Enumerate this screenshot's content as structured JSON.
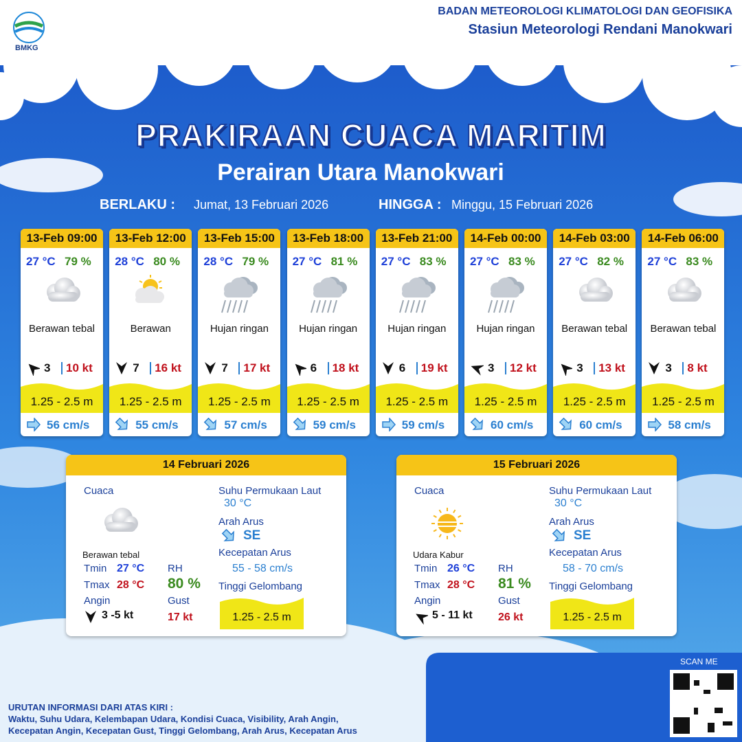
{
  "header": {
    "logo": "BMKG",
    "org": "BADAN METEOROLOGI KLIMATOLOGI DAN GEOFISIKA",
    "station": "Stasiun Meteorologi Rendani Manokwari"
  },
  "title": "PRAKIRAAN CUACA MARITIM",
  "subtitle": "Perairan Utara Manokwari",
  "validity": {
    "from_label": "BERLAKU :",
    "from": "Jumat, 13 Februari 2026",
    "to_label": "HINGGA :",
    "to": "Minggu, 15 Februari 2026"
  },
  "cards": [
    {
      "time": "13-Feb 09:00",
      "temp": "27 °C",
      "rh": "79 %",
      "weather": "Berawan tebal",
      "wind": "3",
      "gust": "10 kt",
      "wave": "1.25 - 2.5 m",
      "current": "56 cm/s"
    },
    {
      "time": "13-Feb 12:00",
      "temp": "28 °C",
      "rh": "80 %",
      "weather": "Berawan",
      "wind": "7",
      "gust": "16 kt",
      "wave": "1.25 - 2.5 m",
      "current": "55 cm/s"
    },
    {
      "time": "13-Feb 15:00",
      "temp": "28 °C",
      "rh": "79 %",
      "weather": "Hujan ringan",
      "wind": "7",
      "gust": "17 kt",
      "wave": "1.25 - 2.5 m",
      "current": "57 cm/s"
    },
    {
      "time": "13-Feb 18:00",
      "temp": "27 °C",
      "rh": "81 %",
      "weather": "Hujan ringan",
      "wind": "6",
      "gust": "18 kt",
      "wave": "1.25 - 2.5 m",
      "current": "59 cm/s"
    },
    {
      "time": "13-Feb 21:00",
      "temp": "27 °C",
      "rh": "83 %",
      "weather": "Hujan ringan",
      "wind": "6",
      "gust": "19 kt",
      "wave": "1.25 - 2.5 m",
      "current": "59 cm/s"
    },
    {
      "time": "14-Feb 00:00",
      "temp": "27 °C",
      "rh": "83 %",
      "weather": "Hujan ringan",
      "wind": "3",
      "gust": "12 kt",
      "wave": "1.25 - 2.5 m",
      "current": "60 cm/s"
    },
    {
      "time": "14-Feb 03:00",
      "temp": "27 °C",
      "rh": "82 %",
      "weather": "Berawan tebal",
      "wind": "3",
      "gust": "13 kt",
      "wave": "1.25 - 2.5 m",
      "current": "60 cm/s"
    },
    {
      "time": "14-Feb 06:00",
      "temp": "27 °C",
      "rh": "83 %",
      "weather": "Berawan tebal",
      "wind": "3",
      "gust": "8 kt",
      "wave": "1.25 - 2.5 m",
      "current": "58 cm/s"
    }
  ],
  "panels": [
    {
      "date": "14 Februari 2026",
      "weather_label": "Cuaca",
      "weather": "Berawan tebal",
      "tmin_label": "Tmin",
      "tmin": "27 °C",
      "tmax_label": "Tmax",
      "tmax": "28 °C",
      "rh_label": "RH",
      "rh": "80 %",
      "wind_label": "Angin",
      "wind": "3 -5 kt",
      "gust_label": "Gust",
      "gust": "17 kt",
      "sst_label": "Suhu Permukaan Laut",
      "sst": "30 °C",
      "dir_label": "Arah Arus",
      "dir": "SE",
      "speed_label": "Kecepatan Arus",
      "speed": "55 - 58 cm/s",
      "wave_label": "Tinggi Gelombang",
      "wave": "1.25 - 2.5 m"
    },
    {
      "date": "15 Februari 2026",
      "weather_label": "Cuaca",
      "weather": "Udara Kabur",
      "tmin_label": "Tmin",
      "tmin": "26 °C",
      "tmax_label": "Tmax",
      "tmax": "28 °C",
      "rh_label": "RH",
      "rh": "81 %",
      "wind_label": "Angin",
      "wind": "5 - 11 kt",
      "gust_label": "Gust",
      "gust": "26 kt",
      "sst_label": "Suhu Permukaan Laut",
      "sst": "30 °C",
      "dir_label": "Arah Arus",
      "dir": "SE",
      "speed_label": "Kecepatan Arus",
      "speed": "58 - 70 cm/s",
      "wave_label": "Tinggi Gelombang",
      "wave": "1.25 - 2.5 m"
    }
  ],
  "footer": {
    "heading": "URUTAN INFORMASI DARI ATAS KIRI :",
    "lines": [
      "Waktu, Suhu Udara, Kelembapan Udara, Kondisi Cuaca, Visibility, Arah Angin,",
      "Kecepatan Angin, Kecepatan Gust, Tinggi Gelombang, Arah Arus, Kecepatan Arus"
    ],
    "scan": "SCAN ME"
  }
}
